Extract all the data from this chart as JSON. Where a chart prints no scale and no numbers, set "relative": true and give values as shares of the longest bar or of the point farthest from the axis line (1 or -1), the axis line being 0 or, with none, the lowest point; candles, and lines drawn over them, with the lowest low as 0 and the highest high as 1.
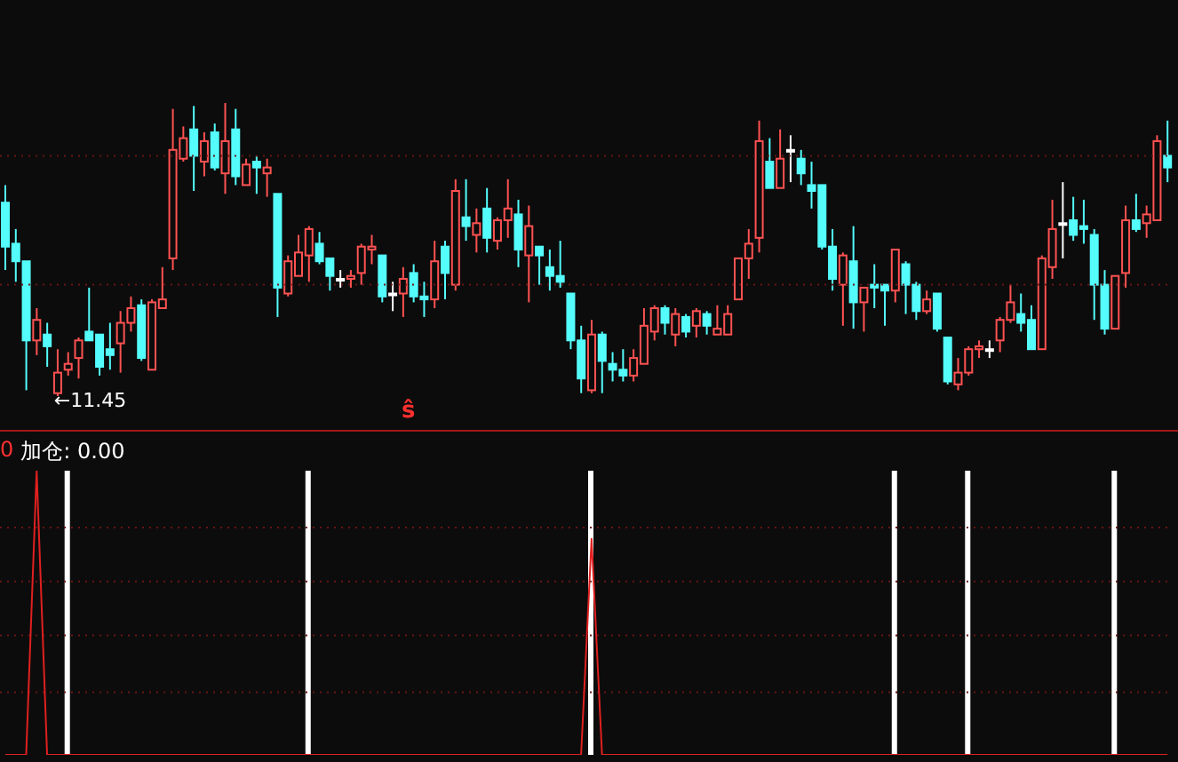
{
  "chart_data": [
    {
      "type": "candlestick",
      "relative": true,
      "tick_labels": false,
      "ref_lines": [
        {
          "axis": "y",
          "value": 0.82,
          "color": "#6a1414",
          "line_style": "dotted"
        },
        {
          "axis": "y",
          "value": 0.38,
          "color": "#6a1414",
          "line_style": "dotted"
        }
      ],
      "annotations": [
        "←11.45",
        "ŝ"
      ],
      "categories": [
        null,
        null,
        null,
        null,
        null,
        null,
        null,
        null,
        null,
        null,
        null,
        null,
        null,
        null,
        null,
        null,
        null,
        null,
        null,
        null,
        null,
        null,
        null,
        null,
        null,
        null,
        null,
        null,
        null,
        null,
        null,
        null,
        null,
        null,
        null,
        null,
        null,
        null,
        null,
        null,
        null,
        null,
        null,
        null,
        null,
        null,
        null,
        null,
        null,
        null,
        null,
        null,
        null,
        null,
        null,
        null,
        null,
        null,
        null,
        null,
        null,
        null,
        null,
        null,
        null,
        null,
        null,
        null,
        null,
        null,
        null,
        null,
        null,
        null,
        null,
        null,
        null,
        null,
        null,
        null,
        null,
        null,
        null,
        null,
        null,
        null,
        null,
        null,
        null,
        null,
        null,
        null,
        null,
        null,
        null,
        null,
        null,
        null,
        null,
        null,
        null,
        null,
        null,
        null,
        null,
        null,
        null,
        null,
        null,
        null,
        null,
        null
      ],
      "ohlc": [
        [
          0.66,
          0.72,
          0.43,
          0.51
        ],
        [
          0.52,
          0.57,
          0.39,
          0.46
        ],
        [
          0.46,
          0.46,
          0.02,
          0.19
        ],
        [
          0.19,
          0.3,
          0.14,
          0.26
        ],
        [
          0.21,
          0.25,
          0.1,
          0.17
        ],
        [
          0.01,
          0.16,
          0,
          0.08
        ],
        [
          0.09,
          0.15,
          0.07,
          0.11
        ],
        [
          0.13,
          0.2,
          0.06,
          0.19
        ],
        [
          0.22,
          0.37,
          0.19,
          0.19
        ],
        [
          0.21,
          0.21,
          0.07,
          0.1
        ],
        [
          0.16,
          0.25,
          0.09,
          0.14
        ],
        [
          0.18,
          0.29,
          0.08,
          0.25
        ],
        [
          0.25,
          0.34,
          0.22,
          0.3
        ],
        [
          0.31,
          0.33,
          0.12,
          0.13
        ],
        [
          0.09,
          0.33,
          0.09,
          0.32
        ],
        [
          0.3,
          0.44,
          0.3,
          0.33
        ],
        [
          0.47,
          0.98,
          0.43,
          0.84
        ],
        [
          0.81,
          0.92,
          0.8,
          0.88
        ],
        [
          0.91,
          0.99,
          0.7,
          0.82
        ],
        [
          0.8,
          0.9,
          0.75,
          0.87
        ],
        [
          0.9,
          0.93,
          0.77,
          0.78
        ],
        [
          0.76,
          1,
          0.69,
          0.87
        ],
        [
          0.91,
          0.98,
          0.72,
          0.75
        ],
        [
          0.72,
          0.81,
          0.72,
          0.79
        ],
        [
          0.8,
          0.82,
          0.69,
          0.78
        ],
        [
          0.76,
          0.81,
          0.68,
          0.78
        ],
        [
          0.69,
          0.69,
          0.27,
          0.37
        ],
        [
          0.35,
          0.48,
          0.34,
          0.46
        ],
        [
          0.41,
          0.55,
          0.41,
          0.49
        ],
        [
          0.48,
          0.58,
          0.39,
          0.57
        ],
        [
          0.52,
          0.56,
          0.45,
          0.46
        ],
        [
          0.47,
          0.47,
          0.36,
          0.41
        ],
        [
          0.4,
          0.43,
          0.37,
          0.4
        ],
        [
          0.4,
          0.43,
          0.37,
          0.41
        ],
        [
          0.42,
          0.52,
          0.38,
          0.51
        ],
        [
          0.5,
          0.55,
          0.45,
          0.51
        ],
        [
          0.48,
          0.48,
          0.32,
          0.34
        ],
        [
          0.35,
          0.39,
          0.29,
          0.35
        ],
        [
          0.35,
          0.44,
          0.27,
          0.4
        ],
        [
          0.42,
          0.45,
          0.32,
          0.34
        ],
        [
          0.34,
          0.39,
          0.27,
          0.33
        ],
        [
          0.33,
          0.53,
          0.3,
          0.46
        ],
        [
          0.51,
          0.53,
          0.33,
          0.42
        ],
        [
          0.38,
          0.74,
          0.36,
          0.7
        ],
        [
          0.61,
          0.74,
          0.53,
          0.58
        ],
        [
          0.55,
          0.64,
          0.49,
          0.59
        ],
        [
          0.64,
          0.71,
          0.49,
          0.54
        ],
        [
          0.53,
          0.61,
          0.5,
          0.6
        ],
        [
          0.6,
          0.74,
          0.54,
          0.64
        ],
        [
          0.62,
          0.67,
          0.44,
          0.5
        ],
        [
          0.48,
          0.65,
          0.32,
          0.58
        ],
        [
          0.51,
          0.51,
          0.38,
          0.48
        ],
        [
          0.44,
          0.5,
          0.36,
          0.41
        ],
        [
          0.41,
          0.53,
          0.37,
          0.39
        ],
        [
          0.35,
          0.35,
          0.16,
          0.19
        ],
        [
          0.19,
          0.24,
          0.01,
          0.06
        ],
        [
          0.02,
          0.26,
          0.01,
          0.21
        ],
        [
          0.21,
          0.22,
          0.01,
          0.12
        ],
        [
          0.11,
          0.15,
          0.05,
          0.09
        ],
        [
          0.09,
          0.16,
          0.05,
          0.07
        ],
        [
          0.07,
          0.16,
          0.05,
          0.13
        ],
        [
          0.11,
          0.3,
          0.11,
          0.24
        ],
        [
          0.22,
          0.31,
          0.19,
          0.3
        ],
        [
          0.3,
          0.31,
          0.21,
          0.25
        ],
        [
          0.21,
          0.3,
          0.17,
          0.28
        ],
        [
          0.27,
          0.28,
          0.2,
          0.22
        ],
        [
          0.24,
          0.3,
          0.2,
          0.29
        ],
        [
          0.28,
          0.29,
          0.21,
          0.24
        ],
        [
          0.21,
          0.31,
          0.21,
          0.23
        ],
        [
          0.21,
          0.31,
          0.21,
          0.28
        ],
        [
          0.33,
          0.47,
          0.33,
          0.47
        ],
        [
          0.47,
          0.57,
          0.4,
          0.52
        ],
        [
          0.54,
          0.94,
          0.49,
          0.87
        ],
        [
          0.8,
          0.88,
          0.71,
          0.71
        ],
        [
          0.71,
          0.91,
          0.71,
          0.81
        ],
        [
          0.84,
          0.89,
          0.73,
          0.84
        ],
        [
          0.81,
          0.84,
          0.72,
          0.76
        ],
        [
          0.72,
          0.8,
          0.64,
          0.7
        ],
        [
          0.72,
          0.72,
          0.5,
          0.51
        ],
        [
          0.51,
          0.57,
          0.36,
          0.4
        ],
        [
          0.38,
          0.49,
          0.24,
          0.48
        ],
        [
          0.46,
          0.58,
          0.23,
          0.32
        ],
        [
          0.32,
          0.37,
          0.22,
          0.37
        ],
        [
          0.38,
          0.45,
          0.3,
          0.37
        ],
        [
          0.38,
          0.38,
          0.24,
          0.36
        ],
        [
          0.36,
          0.5,
          0.32,
          0.5
        ],
        [
          0.45,
          0.46,
          0.28,
          0.38
        ],
        [
          0.38,
          0.39,
          0.26,
          0.29
        ],
        [
          0.29,
          0.36,
          0.28,
          0.33
        ],
        [
          0.35,
          0.35,
          0.22,
          0.23
        ],
        [
          0.2,
          0.2,
          0.04,
          0.05
        ],
        [
          0.04,
          0.13,
          0.02,
          0.08
        ],
        [
          0.08,
          0.17,
          0.07,
          0.16
        ],
        [
          0.16,
          0.19,
          0.13,
          0.17
        ],
        [
          0.16,
          0.19,
          0.13,
          0.16
        ],
        [
          0.19,
          0.27,
          0.15,
          0.26
        ],
        [
          0.26,
          0.38,
          0.25,
          0.32
        ],
        [
          0.28,
          0.35,
          0.22,
          0.25
        ],
        [
          0.26,
          0.31,
          0.16,
          0.16
        ],
        [
          0.16,
          0.48,
          0.16,
          0.47
        ],
        [
          0.44,
          0.67,
          0.4,
          0.57
        ],
        [
          0.59,
          0.73,
          0.47,
          0.59
        ],
        [
          0.6,
          0.68,
          0.53,
          0.55
        ],
        [
          0.58,
          0.67,
          0.52,
          0.57
        ],
        [
          0.55,
          0.57,
          0.26,
          0.38
        ],
        [
          0.38,
          0.43,
          0.21,
          0.23
        ],
        [
          0.23,
          0.41,
          0.23,
          0.41
        ],
        [
          0.42,
          0.65,
          0.37,
          0.6
        ],
        [
          0.6,
          0.69,
          0.56,
          0.57
        ],
        [
          0.59,
          0.65,
          0.54,
          0.62
        ],
        [
          0.6,
          0.89,
          0.6,
          0.87
        ],
        [
          0.82,
          0.94,
          0.73,
          0.78
        ]
      ],
      "colors": [
        "#54fcfc",
        "#54fcfc",
        "#54fcfc",
        "#ff5252",
        "#54fcfc",
        "#ff5252",
        "#ff5252",
        "#ff5252",
        "#54fcfc",
        "#54fcfc",
        "#54fcfc",
        "#ff5252",
        "#ff5252",
        "#54fcfc",
        "#ff5252",
        "#ff5252",
        "#ff5252",
        "#ff5252",
        "#54fcfc",
        "#ff5252",
        "#54fcfc",
        "#ff5252",
        "#54fcfc",
        "#ff5252",
        "#54fcfc",
        "#ff5252",
        "#54fcfc",
        "#ff5252",
        "#ff5252",
        "#ff5252",
        "#54fcfc",
        "#54fcfc",
        "#ffffff",
        "#ff5252",
        "#ff5252",
        "#ff5252",
        "#54fcfc",
        "#ffffff",
        "#ff5252",
        "#54fcfc",
        "#54fcfc",
        "#ff5252",
        "#54fcfc",
        "#ff5252",
        "#54fcfc",
        "#ff5252",
        "#54fcfc",
        "#ff5252",
        "#ff5252",
        "#54fcfc",
        "#ff5252",
        "#54fcfc",
        "#54fcfc",
        "#54fcfc",
        "#54fcfc",
        "#54fcfc",
        "#ff5252",
        "#54fcfc",
        "#54fcfc",
        "#54fcfc",
        "#ff5252",
        "#ff5252",
        "#ff5252",
        "#54fcfc",
        "#ff5252",
        "#54fcfc",
        "#ff5252",
        "#54fcfc",
        "#ff5252",
        "#ff5252",
        "#ff5252",
        "#ff5252",
        "#ff5252",
        "#54fcfc",
        "#ff5252",
        "#ffffff",
        "#54fcfc",
        "#54fcfc",
        "#54fcfc",
        "#54fcfc",
        "#ff5252",
        "#54fcfc",
        "#ff5252",
        "#54fcfc",
        "#54fcfc",
        "#ff5252",
        "#54fcfc",
        "#54fcfc",
        "#ff5252",
        "#54fcfc",
        "#54fcfc",
        "#ff5252",
        "#ff5252",
        "#ff5252",
        "#ffffff",
        "#ff5252",
        "#ff5252",
        "#54fcfc",
        "#54fcfc",
        "#ff5252",
        "#ff5252",
        "#ffffff",
        "#54fcfc",
        "#54fcfc",
        "#54fcfc",
        "#54fcfc",
        "#ff5252",
        "#ff5252",
        "#54fcfc",
        "#ff5252",
        "#ff5252",
        "#54fcfc"
      ]
    },
    {
      "type": "bar",
      "relative": true,
      "tick_labels": false,
      "ref_lines": [
        {
          "axis": "y",
          "value": 0.8,
          "color": "#6a1414",
          "line_style": "dotted"
        },
        {
          "axis": "y",
          "value": 0.61,
          "color": "#6a1414",
          "line_style": "dotted"
        },
        {
          "axis": "y",
          "value": 0.42,
          "color": "#6a1414",
          "line_style": "dotted"
        },
        {
          "axis": "y",
          "value": 0.22,
          "color": "#6a1414",
          "line_style": "dotted"
        }
      ],
      "title": "加仓: 0.00",
      "annotations": [
        "0"
      ],
      "categories": [
        null,
        null,
        null,
        null,
        null,
        null,
        null,
        null,
        null,
        null,
        null,
        null,
        null,
        null,
        null,
        null,
        null,
        null,
        null,
        null,
        null,
        null,
        null,
        null,
        null,
        null,
        null,
        null,
        null,
        null,
        null,
        null,
        null,
        null,
        null,
        null,
        null,
        null,
        null,
        null,
        null,
        null,
        null,
        null,
        null,
        null,
        null,
        null,
        null,
        null,
        null,
        null,
        null,
        null,
        null,
        null,
        null,
        null,
        null,
        null,
        null,
        null,
        null,
        null,
        null,
        null,
        null,
        null,
        null,
        null,
        null,
        null,
        null,
        null,
        null,
        null,
        null,
        null,
        null,
        null,
        null,
        null,
        null,
        null,
        null,
        null,
        null,
        null,
        null,
        null,
        null,
        null,
        null,
        null,
        null,
        null,
        null,
        null,
        null,
        null,
        null,
        null,
        null,
        null,
        null,
        null,
        null,
        null,
        null,
        null,
        null,
        null
      ],
      "series": [
        {
          "type": "bar",
          "color": "#ffffff",
          "values": [
            0,
            0,
            0,
            0,
            0,
            0,
            1,
            0,
            0,
            0,
            0,
            0,
            0,
            0,
            0,
            0,
            0,
            0,
            0,
            0,
            0,
            0,
            0,
            0,
            0,
            0,
            0,
            0,
            0,
            1,
            0,
            0,
            0,
            0,
            0,
            0,
            0,
            0,
            0,
            0,
            0,
            0,
            0,
            0,
            0,
            0,
            0,
            0,
            0,
            0,
            0,
            0,
            0,
            0,
            0,
            0,
            1,
            0,
            0,
            0,
            0,
            0,
            0,
            0,
            0,
            0,
            0,
            0,
            0,
            0,
            0,
            0,
            0,
            0,
            0,
            0,
            0,
            0,
            0,
            0,
            0,
            0,
            0,
            0,
            0,
            1,
            0,
            0,
            0,
            0,
            0,
            0,
            1,
            0,
            0,
            0,
            0,
            0,
            0,
            0,
            0,
            0,
            0,
            0,
            0,
            0,
            1,
            0,
            0,
            0,
            0,
            0
          ]
        },
        {
          "type": "line",
          "color": "#e02020",
          "values": [
            0,
            0,
            0,
            1,
            0,
            0,
            0,
            0,
            0,
            0,
            0,
            0,
            0,
            0,
            0,
            0,
            0,
            0,
            0,
            0,
            0,
            0,
            0,
            0,
            0,
            0,
            0,
            0,
            0,
            0,
            0,
            0,
            0,
            0,
            0,
            0,
            0,
            0,
            0,
            0,
            0,
            0,
            0,
            0,
            0,
            0,
            0,
            0,
            0,
            0,
            0,
            0,
            0,
            0,
            0,
            0,
            0.76,
            0,
            0,
            0,
            0,
            0,
            0,
            0,
            0,
            0,
            0,
            0,
            0,
            0,
            0,
            0,
            0,
            0,
            0,
            0,
            0,
            0,
            0,
            0,
            0,
            0,
            0,
            0,
            0,
            0,
            0,
            0,
            0,
            0,
            0,
            0,
            0,
            0,
            0,
            0,
            0,
            0,
            0,
            0,
            0,
            0,
            0,
            0,
            0,
            0,
            0,
            0,
            0,
            0,
            0,
            0
          ]
        }
      ]
    }
  ]
}
